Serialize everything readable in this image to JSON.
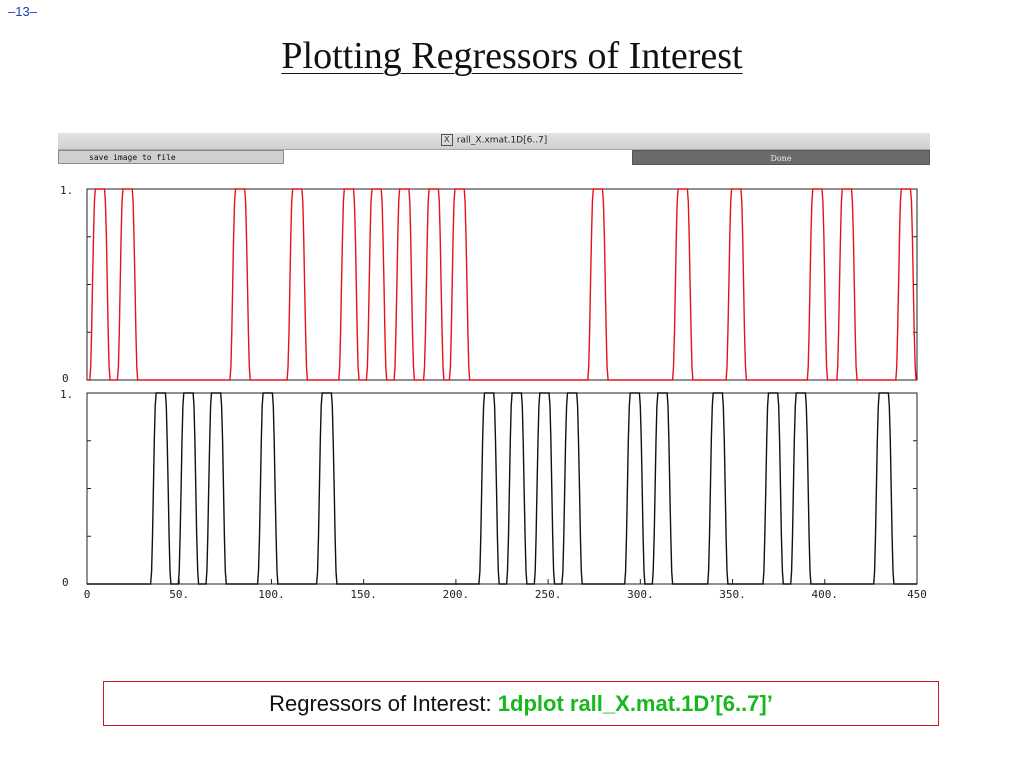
{
  "page_number": "–13–",
  "title": "Plotting Regressors of Interest",
  "window": {
    "title": "rall_X.xmat.1D[6..7]",
    "save_button": "save image to file",
    "done_button": "Done"
  },
  "caption": {
    "label": "Regressors of Interest: ",
    "command": "1dplot rall_X.mat.1D’[6..7]’"
  },
  "colors": {
    "series_1": "#e8121c",
    "series_2": "#111111",
    "caption_border": "#c9182b",
    "command": "#16b81e"
  },
  "chart_data": [
    {
      "type": "line",
      "xlim": [
        0,
        450
      ],
      "ylim": [
        0,
        1
      ],
      "y_tick_labels": [
        "1.",
        "0"
      ],
      "grid": false,
      "series": [
        {
          "pulse_centers": [
            7,
            22,
            83,
            114,
            142,
            157,
            172,
            188,
            202,
            277,
            323,
            352,
            396,
            412,
            444
          ],
          "min": 0,
          "max": 1
        }
      ]
    },
    {
      "type": "line",
      "xlim": [
        0,
        450
      ],
      "ylim": [
        0,
        1
      ],
      "x_tick_labels": [
        "0",
        "50.",
        "100.",
        "150.",
        "200.",
        "250.",
        "300.",
        "350.",
        "400.",
        "450"
      ],
      "y_tick_labels": [
        "1.",
        "0"
      ],
      "grid": false,
      "series": [
        {
          "pulse_centers": [
            40,
            55,
            70,
            98,
            130,
            218,
            233,
            248,
            263,
            297,
            312,
            342,
            372,
            387,
            432
          ],
          "min": 0,
          "max": 1
        }
      ]
    }
  ]
}
